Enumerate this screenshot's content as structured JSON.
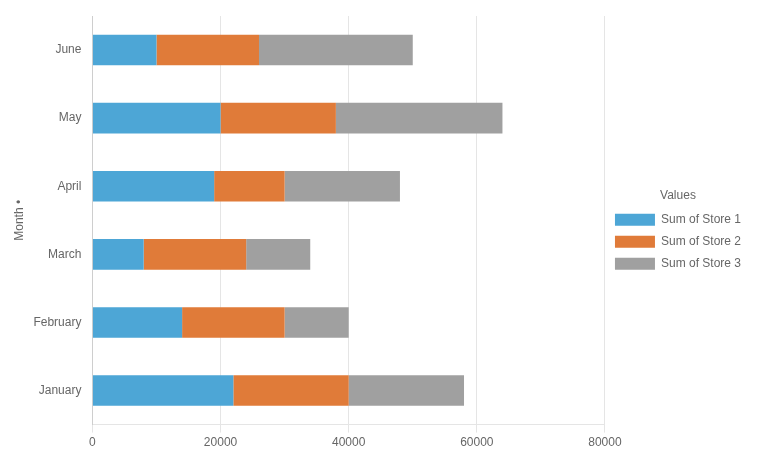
{
  "chart_data": {
    "type": "bar",
    "orientation": "horizontal",
    "stacked": true,
    "y_label": "Month •",
    "legend_title": "Values",
    "legend": "right",
    "grid": "x",
    "categories": [
      "January",
      "February",
      "March",
      "April",
      "May",
      "June"
    ],
    "series": [
      {
        "name": "Sum of Store 1",
        "color": "#4DA6D6",
        "values": [
          22000,
          14000,
          8000,
          19000,
          20000,
          10000
        ]
      },
      {
        "name": "Sum of Store 2",
        "color": "#E07B39",
        "values": [
          18000,
          16000,
          16000,
          11000,
          18000,
          16000
        ]
      },
      {
        "name": "Sum of Store 3",
        "color": "#A0A0A0",
        "values": [
          18000,
          10000,
          10000,
          18000,
          26000,
          24000
        ]
      }
    ],
    "xlim": [
      0,
      80000
    ],
    "xticks": [
      0,
      20000,
      40000,
      60000,
      80000
    ]
  }
}
